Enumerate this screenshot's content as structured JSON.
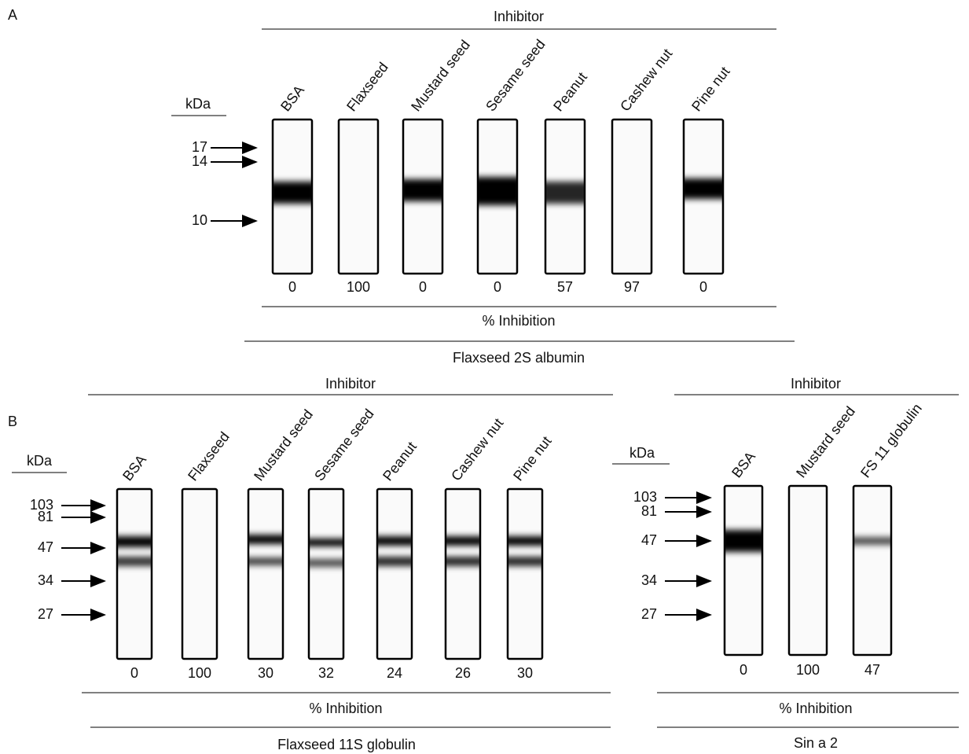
{
  "panel_a": {
    "label": "A",
    "inhibitor_heading": "Inhibitor",
    "unit": "kDa",
    "markers": [
      17,
      14,
      10
    ],
    "lanes": [
      {
        "name": "BSA",
        "inhibition": 0
      },
      {
        "name": "Flaxseed",
        "inhibition": 100
      },
      {
        "name": "Mustard seed",
        "inhibition": 0
      },
      {
        "name": "Sesame seed",
        "inhibition": 0
      },
      {
        "name": "Peanut",
        "inhibition": 57
      },
      {
        "name": "Cashew nut",
        "inhibition": 97
      },
      {
        "name": "Pine nut",
        "inhibition": 0
      }
    ],
    "axis_title": "% Inhibition",
    "caption": "Flaxseed 2S albumin"
  },
  "panel_b": {
    "label": "B",
    "inhibitor_heading": "Inhibitor",
    "unit": "kDa",
    "markers": [
      103,
      81,
      47,
      34,
      27
    ],
    "lanes": [
      {
        "name": "BSA",
        "inhibition": 0
      },
      {
        "name": "Flaxseed",
        "inhibition": 100
      },
      {
        "name": "Mustard seed",
        "inhibition": 30
      },
      {
        "name": "Sesame seed",
        "inhibition": 32
      },
      {
        "name": "Peanut",
        "inhibition": 24
      },
      {
        "name": "Cashew nut",
        "inhibition": 26
      },
      {
        "name": "Pine nut",
        "inhibition": 30
      }
    ],
    "axis_title": "% Inhibition",
    "caption": "Flaxseed 11S globulin"
  },
  "panel_c": {
    "inhibitor_heading": "Inhibitor",
    "unit": "kDa",
    "markers": [
      103,
      81,
      47,
      34,
      27
    ],
    "lanes": [
      {
        "name": "BSA",
        "inhibition": 0
      },
      {
        "name": "Mustard seed",
        "inhibition": 100
      },
      {
        "name": "FS 11 globulin",
        "inhibition": 47
      }
    ],
    "axis_title": "% Inhibition",
    "caption": "Sin a 2"
  }
}
